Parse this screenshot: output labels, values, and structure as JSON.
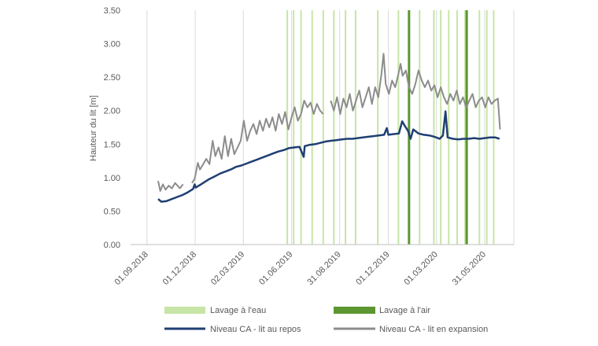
{
  "chart_data": {
    "type": "line",
    "ylabel": "Hauteur du lit [m]",
    "ylim": [
      0,
      3.5
    ],
    "yticks": [
      "0.00",
      "0.50",
      "1.00",
      "1.50",
      "2.00",
      "2.50",
      "3.00",
      "3.50"
    ],
    "xlim": [
      "2018-08-01",
      "2020-07-25"
    ],
    "xticks": [
      {
        "date": "2018-09-01",
        "label": "01.09.2018"
      },
      {
        "date": "2018-12-01",
        "label": "01.12.2018"
      },
      {
        "date": "2019-03-02",
        "label": "02.03.2019"
      },
      {
        "date": "2019-06-01",
        "label": "01.06.2019"
      },
      {
        "date": "2019-08-31",
        "label": "31.08.2019"
      },
      {
        "date": "2019-12-01",
        "label": "01.12.2019"
      },
      {
        "date": "2020-03-01",
        "label": "01.03.2020"
      },
      {
        "date": "2020-05-31",
        "label": "31.05.2020"
      }
    ],
    "grid": "vertical at x ticks",
    "legend_position": "bottom",
    "event_series": [
      {
        "name": "Lavage à l'eau",
        "color": "#c6e5a6",
        "dates": [
          "2019-05-24",
          "2019-06-05",
          "2019-06-19",
          "2019-07-10",
          "2019-07-31",
          "2019-08-20",
          "2019-09-11",
          "2019-09-30",
          "2019-11-11",
          "2019-12-20",
          "2020-01-29",
          "2020-02-25",
          "2020-03-09",
          "2020-03-24",
          "2020-04-09",
          "2020-04-24",
          "2020-05-21",
          "2020-06-04",
          "2020-06-17"
        ]
      },
      {
        "name": "Lavage à l'air",
        "color": "#5b9631",
        "dates": [
          "2020-01-09",
          "2020-04-27"
        ]
      }
    ],
    "series": [
      {
        "name": "Niveau CA - lit au repos",
        "color": "#1f3f73",
        "points": [
          [
            "2018-09-22",
            0.68
          ],
          [
            "2018-09-28",
            0.64
          ],
          [
            "2018-10-08",
            0.65
          ],
          [
            "2018-10-18",
            0.68
          ],
          [
            "2018-10-28",
            0.71
          ],
          [
            "2018-11-07",
            0.74
          ],
          [
            "2018-11-17",
            0.78
          ],
          [
            "2018-11-27",
            0.83
          ],
          [
            "2018-11-30",
            0.9
          ],
          [
            "2018-12-02",
            0.85
          ],
          [
            "2018-12-08",
            0.88
          ],
          [
            "2018-12-18",
            0.93
          ],
          [
            "2018-12-28",
            0.98
          ],
          [
            "2019-01-07",
            1.02
          ],
          [
            "2019-01-17",
            1.06
          ],
          [
            "2019-01-27",
            1.09
          ],
          [
            "2019-02-06",
            1.12
          ],
          [
            "2019-02-16",
            1.16
          ],
          [
            "2019-02-26",
            1.18
          ],
          [
            "2019-03-08",
            1.21
          ],
          [
            "2019-03-18",
            1.24
          ],
          [
            "2019-03-28",
            1.27
          ],
          [
            "2019-04-07",
            1.3
          ],
          [
            "2019-04-17",
            1.33
          ],
          [
            "2019-04-27",
            1.36
          ],
          [
            "2019-05-07",
            1.39
          ],
          [
            "2019-05-17",
            1.41
          ],
          [
            "2019-05-27",
            1.44
          ],
          [
            "2019-06-06",
            1.45
          ],
          [
            "2019-06-16",
            1.46
          ],
          [
            "2019-06-24",
            1.31
          ],
          [
            "2019-06-26",
            1.47
          ],
          [
            "2019-07-06",
            1.49
          ],
          [
            "2019-07-16",
            1.5
          ],
          [
            "2019-07-26",
            1.52
          ],
          [
            "2019-08-05",
            1.54
          ],
          [
            "2019-08-15",
            1.55
          ],
          [
            "2019-08-25",
            1.56
          ],
          [
            "2019-09-04",
            1.57
          ],
          [
            "2019-09-14",
            1.58
          ],
          [
            "2019-09-24",
            1.58
          ],
          [
            "2019-10-04",
            1.59
          ],
          [
            "2019-10-14",
            1.6
          ],
          [
            "2019-10-24",
            1.61
          ],
          [
            "2019-11-03",
            1.62
          ],
          [
            "2019-11-13",
            1.63
          ],
          [
            "2019-11-23",
            1.64
          ],
          [
            "2019-11-28",
            1.74
          ],
          [
            "2019-12-01",
            1.64
          ],
          [
            "2019-12-11",
            1.65
          ],
          [
            "2019-12-21",
            1.66
          ],
          [
            "2019-12-27",
            1.84
          ],
          [
            "2020-01-02",
            1.76
          ],
          [
            "2020-01-07",
            1.7
          ],
          [
            "2020-01-12",
            1.58
          ],
          [
            "2020-01-17",
            1.72
          ],
          [
            "2020-01-27",
            1.66
          ],
          [
            "2020-02-06",
            1.64
          ],
          [
            "2020-02-16",
            1.63
          ],
          [
            "2020-02-26",
            1.61
          ],
          [
            "2020-03-07",
            1.58
          ],
          [
            "2020-03-13",
            1.63
          ],
          [
            "2020-03-18",
            1.99
          ],
          [
            "2020-03-22",
            1.6
          ],
          [
            "2020-04-01",
            1.58
          ],
          [
            "2020-04-11",
            1.57
          ],
          [
            "2020-04-21",
            1.58
          ],
          [
            "2020-05-01",
            1.58
          ],
          [
            "2020-05-11",
            1.59
          ],
          [
            "2020-05-21",
            1.58
          ],
          [
            "2020-05-31",
            1.59
          ],
          [
            "2020-06-10",
            1.6
          ],
          [
            "2020-06-20",
            1.6
          ],
          [
            "2020-06-28",
            1.58
          ]
        ]
      },
      {
        "name": "Niveau CA - lit en expansion",
        "color": "#8c8c8c",
        "points": [
          [
            "2018-09-22",
            0.95
          ],
          [
            "2018-09-26",
            0.8
          ],
          [
            "2018-10-01",
            0.9
          ],
          [
            "2018-10-06",
            0.82
          ],
          [
            "2018-10-12",
            0.88
          ],
          [
            "2018-10-18",
            0.84
          ],
          [
            "2018-10-24",
            0.92
          ],
          [
            "2018-11-02",
            0.84
          ],
          [
            "2018-11-08",
            0.9
          ],
          [
            "2018-11-25",
            0.92
          ],
          [
            "2018-11-30",
            0.98
          ],
          [
            "2018-12-06",
            1.22
          ],
          [
            "2018-12-10",
            1.12
          ],
          [
            "2018-12-16",
            1.2
          ],
          [
            "2018-12-22",
            1.28
          ],
          [
            "2018-12-28",
            1.2
          ],
          [
            "2019-01-03",
            1.55
          ],
          [
            "2019-01-08",
            1.32
          ],
          [
            "2019-01-14",
            1.45
          ],
          [
            "2019-01-20",
            1.28
          ],
          [
            "2019-01-26",
            1.62
          ],
          [
            "2019-02-01",
            1.32
          ],
          [
            "2019-02-07",
            1.58
          ],
          [
            "2019-02-13",
            1.35
          ],
          [
            "2019-02-19",
            1.45
          ],
          [
            "2019-02-25",
            1.55
          ],
          [
            "2019-03-03",
            1.85
          ],
          [
            "2019-03-09",
            1.55
          ],
          [
            "2019-03-15",
            1.7
          ],
          [
            "2019-03-21",
            1.8
          ],
          [
            "2019-03-27",
            1.65
          ],
          [
            "2019-04-02",
            1.85
          ],
          [
            "2019-04-08",
            1.7
          ],
          [
            "2019-04-14",
            1.88
          ],
          [
            "2019-04-20",
            1.75
          ],
          [
            "2019-04-26",
            1.9
          ],
          [
            "2019-05-02",
            1.7
          ],
          [
            "2019-05-08",
            1.95
          ],
          [
            "2019-05-14",
            1.8
          ],
          [
            "2019-05-20",
            1.98
          ],
          [
            "2019-05-26",
            1.72
          ],
          [
            "2019-06-01",
            1.9
          ],
          [
            "2019-06-07",
            2.05
          ],
          [
            "2019-06-13",
            1.85
          ],
          [
            "2019-06-19",
            1.95
          ],
          [
            "2019-06-25",
            2.15
          ],
          [
            "2019-07-01",
            2.05
          ],
          [
            "2019-07-07",
            2.12
          ],
          [
            "2019-07-13",
            1.95
          ],
          [
            "2019-07-19",
            2.1
          ],
          [
            "2019-07-25",
            2.0
          ],
          [
            "2019-07-31",
            1.95
          ],
          [
            "2019-08-14",
            2.15
          ],
          [
            "2019-08-20",
            2.0
          ],
          [
            "2019-08-26",
            2.2
          ],
          [
            "2019-09-01",
            1.95
          ],
          [
            "2019-09-07",
            2.18
          ],
          [
            "2019-09-13",
            2.05
          ],
          [
            "2019-09-19",
            2.25
          ],
          [
            "2019-09-25",
            2.0
          ],
          [
            "2019-10-01",
            2.15
          ],
          [
            "2019-10-07",
            2.3
          ],
          [
            "2019-10-13",
            2.05
          ],
          [
            "2019-10-19",
            2.2
          ],
          [
            "2019-10-25",
            2.35
          ],
          [
            "2019-10-31",
            2.1
          ],
          [
            "2019-11-06",
            2.35
          ],
          [
            "2019-11-12",
            2.2
          ],
          [
            "2019-11-18",
            2.55
          ],
          [
            "2019-11-22",
            2.85
          ],
          [
            "2019-11-26",
            2.4
          ],
          [
            "2019-12-02",
            2.25
          ],
          [
            "2019-12-08",
            2.45
          ],
          [
            "2019-12-14",
            2.35
          ],
          [
            "2019-12-20",
            2.55
          ],
          [
            "2019-12-24",
            2.7
          ],
          [
            "2019-12-28",
            2.52
          ],
          [
            "2020-01-03",
            2.6
          ],
          [
            "2020-01-09",
            2.35
          ],
          [
            "2020-01-15",
            2.25
          ],
          [
            "2020-01-21",
            2.4
          ],
          [
            "2020-01-27",
            2.6
          ],
          [
            "2020-02-02",
            2.45
          ],
          [
            "2020-02-08",
            2.35
          ],
          [
            "2020-02-14",
            2.45
          ],
          [
            "2020-02-20",
            2.3
          ],
          [
            "2020-02-26",
            2.38
          ],
          [
            "2020-03-03",
            2.2
          ],
          [
            "2020-03-09",
            2.35
          ],
          [
            "2020-03-15",
            2.2
          ],
          [
            "2020-03-21",
            2.1
          ],
          [
            "2020-03-27",
            2.25
          ],
          [
            "2020-04-02",
            2.15
          ],
          [
            "2020-04-08",
            2.3
          ],
          [
            "2020-04-14",
            2.1
          ],
          [
            "2020-04-20",
            2.2
          ],
          [
            "2020-04-26",
            2.05
          ],
          [
            "2020-05-02",
            2.15
          ],
          [
            "2020-05-08",
            2.25
          ],
          [
            "2020-05-14",
            2.05
          ],
          [
            "2020-05-20",
            2.15
          ],
          [
            "2020-05-26",
            2.2
          ],
          [
            "2020-06-01",
            2.05
          ],
          [
            "2020-06-07",
            2.2
          ],
          [
            "2020-06-13",
            2.1
          ],
          [
            "2020-06-19",
            2.15
          ],
          [
            "2020-06-25",
            2.18
          ],
          [
            "2020-06-29",
            1.72
          ]
        ]
      }
    ]
  }
}
